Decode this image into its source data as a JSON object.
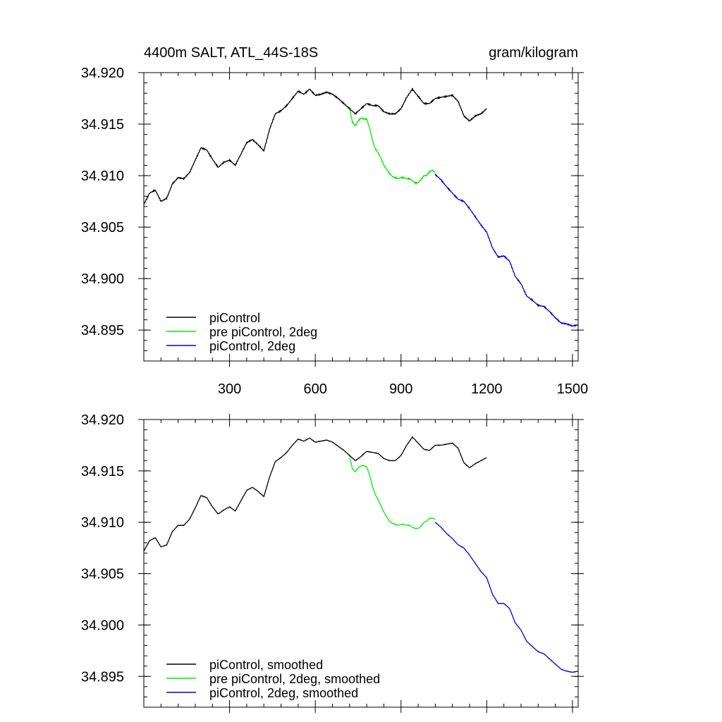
{
  "chart_data": [
    {
      "type": "line",
      "title_left": "4400m SALT, ATL_44S-18S",
      "title_right": "gram/kilogram",
      "xlim": [
        0,
        1520
      ],
      "ylim": [
        34.892,
        34.92
      ],
      "x_ticks": [
        300,
        600,
        900,
        1200,
        1500
      ],
      "y_ticks": [
        34.92,
        34.915,
        34.91,
        34.905,
        34.9,
        34.895
      ],
      "x_ticks_labeled": true,
      "legend_position": "bottom-left",
      "colors": {
        "piControl": "#000000",
        "pre": "#00ee00",
        "pi2deg": "#0000dd"
      },
      "series": [
        {
          "name": "piControl",
          "color": "#000000",
          "x": [
            0,
            20,
            40,
            60,
            80,
            100,
            120,
            140,
            160,
            180,
            200,
            220,
            240,
            260,
            280,
            300,
            320,
            340,
            360,
            380,
            400,
            420,
            440,
            460,
            480,
            500,
            520,
            540,
            560,
            580,
            600,
            620,
            640,
            660,
            680,
            700,
            720,
            740,
            760,
            780,
            800,
            820,
            840,
            860,
            880,
            900,
            920,
            940,
            960,
            980,
            1000,
            1020,
            1040,
            1060,
            1080,
            1100,
            1120,
            1140,
            1160,
            1180,
            1200
          ],
          "y": [
            34.9072,
            34.9083,
            34.9086,
            34.9075,
            34.9078,
            34.9092,
            34.9098,
            34.9097,
            34.9103,
            34.9115,
            34.9127,
            34.9125,
            34.9116,
            34.9108,
            34.9113,
            34.9115,
            34.911,
            34.9121,
            34.9132,
            34.9135,
            34.913,
            34.9124,
            34.9145,
            34.916,
            34.9163,
            34.9168,
            34.9175,
            34.9182,
            34.9179,
            34.9184,
            34.9178,
            34.9179,
            34.9181,
            34.9179,
            34.9175,
            34.917,
            34.9165,
            34.916,
            34.9165,
            34.917,
            34.9168,
            34.9168,
            34.9162,
            34.916,
            34.916,
            34.9165,
            34.9176,
            34.9184,
            34.9177,
            34.917,
            34.917,
            34.9175,
            34.9176,
            34.9177,
            34.9178,
            34.9172,
            34.9158,
            34.9153,
            34.9158,
            34.916,
            34.9165
          ]
        },
        {
          "name": "pre piControl, 2deg",
          "color": "#00ee00",
          "x": [
            720,
            730,
            740,
            750,
            760,
            770,
            780,
            790,
            800,
            810,
            820,
            830,
            840,
            850,
            860,
            870,
            880,
            890,
            900,
            910,
            920,
            930,
            940,
            950,
            960,
            970,
            980,
            990,
            1000,
            1010,
            1020
          ],
          "y": [
            34.9165,
            34.9152,
            34.9148,
            34.9153,
            34.9156,
            34.9155,
            34.9155,
            34.9146,
            34.9135,
            34.9126,
            34.9122,
            34.9117,
            34.911,
            34.9106,
            34.9102,
            34.9099,
            34.9098,
            34.9097,
            34.9098,
            34.9098,
            34.9097,
            34.9097,
            34.9095,
            34.9093,
            34.9093,
            34.9096,
            34.91,
            34.91,
            34.9104,
            34.9105,
            34.9103
          ]
        },
        {
          "name": "piControl, 2deg",
          "color": "#0000dd",
          "x": [
            1020,
            1040,
            1060,
            1080,
            1100,
            1120,
            1140,
            1160,
            1180,
            1200,
            1220,
            1240,
            1260,
            1280,
            1300,
            1320,
            1340,
            1360,
            1380,
            1400,
            1420,
            1440,
            1460,
            1480,
            1500,
            1520
          ],
          "y": [
            34.9101,
            34.9096,
            34.9089,
            34.9083,
            34.9077,
            34.9075,
            34.9068,
            34.906,
            34.9052,
            34.9045,
            34.903,
            34.9021,
            34.9022,
            34.9017,
            34.9002,
            34.8995,
            34.8983,
            34.8979,
            34.8974,
            34.8973,
            34.8968,
            34.8962,
            34.8957,
            34.8956,
            34.8954,
            34.8955
          ]
        }
      ]
    },
    {
      "type": "line",
      "xlim": [
        0,
        1520
      ],
      "ylim": [
        34.892,
        34.92
      ],
      "x_ticks": [
        300,
        600,
        900,
        1200,
        1500
      ],
      "y_ticks": [
        34.92,
        34.915,
        34.91,
        34.905,
        34.9,
        34.895
      ],
      "x_ticks_labeled": false,
      "legend_position": "bottom-left",
      "series": [
        {
          "name": "piControl, smoothed",
          "color": "#000000",
          "x": [
            0,
            20,
            40,
            60,
            80,
            100,
            120,
            140,
            160,
            180,
            200,
            220,
            240,
            260,
            280,
            300,
            320,
            340,
            360,
            380,
            400,
            420,
            440,
            460,
            480,
            500,
            520,
            540,
            560,
            580,
            600,
            620,
            640,
            660,
            680,
            700,
            720,
            740,
            760,
            780,
            800,
            820,
            840,
            860,
            880,
            900,
            920,
            940,
            960,
            980,
            1000,
            1020,
            1040,
            1060,
            1080,
            1100,
            1120,
            1140,
            1160,
            1180,
            1200
          ],
          "y": [
            34.9072,
            34.9082,
            34.9085,
            34.9076,
            34.9078,
            34.9091,
            34.9097,
            34.9097,
            34.9103,
            34.9114,
            34.9126,
            34.9124,
            34.9115,
            34.9108,
            34.9112,
            34.9115,
            34.9111,
            34.9121,
            34.9131,
            34.9134,
            34.913,
            34.9125,
            34.9144,
            34.9159,
            34.9163,
            34.9168,
            34.9175,
            34.9181,
            34.9179,
            34.9182,
            34.9178,
            34.9179,
            34.918,
            34.9178,
            34.9174,
            34.917,
            34.9165,
            34.916,
            34.9164,
            34.9169,
            34.9168,
            34.9167,
            34.9162,
            34.916,
            34.916,
            34.9165,
            34.9175,
            34.9183,
            34.9177,
            34.9171,
            34.917,
            34.9175,
            34.9175,
            34.9176,
            34.9177,
            34.9172,
            34.9158,
            34.9153,
            34.9157,
            34.916,
            34.9163
          ]
        },
        {
          "name": "pre piControl, 2deg, smoothed",
          "color": "#00ee00",
          "x": [
            720,
            730,
            740,
            750,
            760,
            770,
            780,
            790,
            800,
            810,
            820,
            830,
            840,
            850,
            860,
            870,
            880,
            890,
            900,
            910,
            920,
            930,
            940,
            950,
            960,
            970,
            980,
            990,
            1000,
            1010,
            1020
          ],
          "y": [
            34.9164,
            34.9152,
            34.9149,
            34.9153,
            34.9155,
            34.9155,
            34.9154,
            34.9146,
            34.9135,
            34.9127,
            34.9122,
            34.9116,
            34.911,
            34.9105,
            34.9101,
            34.9099,
            34.9098,
            34.9097,
            34.9098,
            34.9098,
            34.9097,
            34.9097,
            34.9095,
            34.9094,
            34.9094,
            34.9096,
            34.91,
            34.9101,
            34.9104,
            34.9104,
            34.9103
          ]
        },
        {
          "name": "piControl, 2deg, smoothed",
          "color": "#0000dd",
          "x": [
            1020,
            1040,
            1060,
            1080,
            1100,
            1120,
            1140,
            1160,
            1180,
            1200,
            1220,
            1240,
            1260,
            1280,
            1300,
            1320,
            1340,
            1360,
            1380,
            1400,
            1420,
            1440,
            1460,
            1480,
            1500,
            1520
          ],
          "y": [
            34.91,
            34.9095,
            34.9089,
            34.9084,
            34.9078,
            34.9075,
            34.9068,
            34.906,
            34.9052,
            34.9046,
            34.903,
            34.9021,
            34.9021,
            34.9016,
            34.9002,
            34.8995,
            34.8984,
            34.8979,
            34.8974,
            34.8972,
            34.8967,
            34.8962,
            34.8957,
            34.8955,
            34.8954,
            34.8955
          ]
        }
      ]
    }
  ]
}
